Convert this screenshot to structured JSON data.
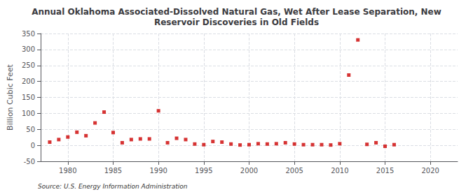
{
  "chart_data": {
    "type": "scatter",
    "title": "Annual Oklahoma Associated-Dissolved Natural Gas, Wet After Lease Separation, New\nReservoir Discoveries in Old Fields",
    "ylabel": "Billion Cubic Feet",
    "annotations": [
      "Source: U.S. Energy Information Administration"
    ],
    "x": [
      1978,
      1979,
      1980,
      1981,
      1982,
      1983,
      1984,
      1985,
      1986,
      1987,
      1988,
      1989,
      1990,
      1991,
      1992,
      1993,
      1994,
      1995,
      1996,
      1997,
      1998,
      1999,
      2000,
      2001,
      2002,
      2003,
      2004,
      2005,
      2006,
      2007,
      2008,
      2009,
      2010,
      2011,
      2012,
      2013,
      2014,
      2015,
      2016
    ],
    "values": [
      10,
      18,
      26,
      41,
      30,
      70,
      104,
      40,
      8,
      18,
      20,
      20,
      108,
      8,
      22,
      18,
      4,
      2,
      12,
      10,
      4,
      1,
      2,
      5,
      4,
      5,
      8,
      4,
      2,
      2,
      2,
      1,
      5,
      220,
      330,
      3,
      8,
      -3,
      2
    ],
    "color": "#cc0000",
    "marker": "square",
    "xlim": [
      1977,
      2023
    ],
    "xticks": [
      1980,
      1985,
      1990,
      1995,
      2000,
      2005,
      2010,
      2015,
      2020
    ],
    "ylim": [
      -50,
      350
    ],
    "yticks": [
      -50,
      0,
      50,
      100,
      150,
      200,
      250,
      300,
      350
    ],
    "grid": true
  }
}
